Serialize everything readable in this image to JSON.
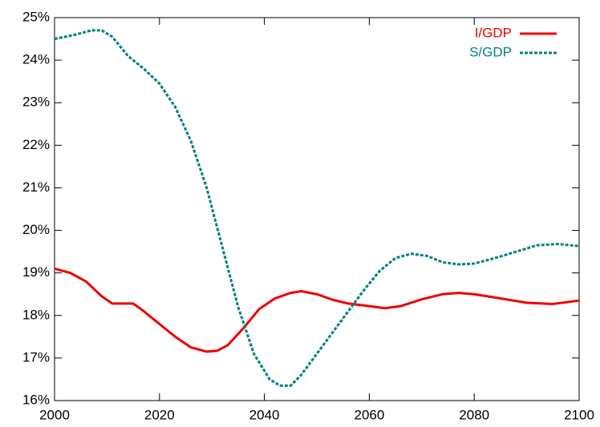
{
  "chart_data": {
    "type": "line",
    "series": [
      {
        "name": "I/GDP",
        "color": "#ee0000",
        "dash": "solid",
        "x": [
          2000,
          2003,
          2006,
          2009,
          2011,
          2015,
          2017,
          2020,
          2023,
          2026,
          2029,
          2031,
          2033,
          2036,
          2039,
          2042,
          2045,
          2047,
          2050,
          2053,
          2056,
          2060,
          2063,
          2066,
          2070,
          2074,
          2077,
          2080,
          2085,
          2090,
          2095,
          2100
        ],
        "values": [
          19.1,
          19.0,
          18.8,
          18.45,
          18.28,
          18.28,
          18.1,
          17.8,
          17.5,
          17.25,
          17.15,
          17.17,
          17.3,
          17.7,
          18.15,
          18.4,
          18.53,
          18.57,
          18.5,
          18.37,
          18.28,
          18.22,
          18.17,
          18.22,
          18.38,
          18.5,
          18.53,
          18.5,
          18.4,
          18.3,
          18.27,
          18.35
        ]
      },
      {
        "name": "S/GDP",
        "color": "#008080",
        "dash": "dashed",
        "x": [
          2000,
          2004,
          2007,
          2009,
          2011,
          2014,
          2017,
          2020,
          2023,
          2026,
          2029,
          2032,
          2035,
          2038,
          2041,
          2043,
          2045,
          2047,
          2050,
          2053,
          2056,
          2059,
          2062,
          2065,
          2068,
          2071,
          2074,
          2077,
          2080,
          2084,
          2088,
          2092,
          2096,
          2100
        ],
        "values": [
          24.5,
          24.6,
          24.7,
          24.7,
          24.55,
          24.1,
          23.8,
          23.45,
          22.9,
          22.1,
          21.0,
          19.6,
          18.2,
          17.1,
          16.5,
          16.35,
          16.35,
          16.6,
          17.1,
          17.6,
          18.1,
          18.6,
          19.05,
          19.35,
          19.45,
          19.4,
          19.25,
          19.2,
          19.22,
          19.35,
          19.5,
          19.65,
          19.68,
          19.63
        ]
      }
    ],
    "xlim": [
      2000,
      2100
    ],
    "xticks": [
      2000,
      2020,
      2040,
      2060,
      2080,
      2100
    ],
    "ylim": [
      16,
      25
    ],
    "yticks": [
      {
        "value": 16,
        "label": "16%"
      },
      {
        "value": 17,
        "label": "17%"
      },
      {
        "value": 18,
        "label": "18%"
      },
      {
        "value": 19,
        "label": "19%"
      },
      {
        "value": 20,
        "label": "20%"
      },
      {
        "value": 21,
        "label": "21%"
      },
      {
        "value": 22,
        "label": "22%"
      },
      {
        "value": 23,
        "label": "23%"
      },
      {
        "value": 24,
        "label": "24%"
      },
      {
        "value": 25,
        "label": "25%"
      }
    ],
    "legend": "top-right"
  }
}
